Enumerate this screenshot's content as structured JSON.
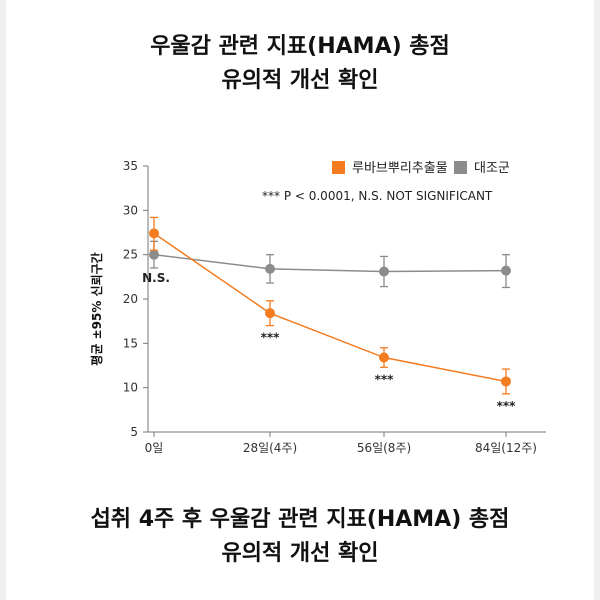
{
  "headline_top": {
    "line1": "우울감 관련 지표(HAMA) 총점",
    "line2": "유의적 개선 확인"
  },
  "headline_bottom": {
    "line1": "섭취 4주 후 우울감 관련 지표(HAMA) 총점",
    "line2": "유의적 개선 확인"
  },
  "chart_data": {
    "type": "line",
    "ylabel": "평균 ±95% 신뢰구간",
    "ylim": [
      5,
      35
    ],
    "yticks": [
      5,
      10,
      15,
      20,
      25,
      30,
      35
    ],
    "categories": [
      "0일",
      "28일(4주)",
      "56일(8주)",
      "84일(12주)"
    ],
    "grid": false,
    "legend_position": "top-right",
    "note": "*** P < 0.0001, N.S. NOT SIGNIFICANT",
    "series": [
      {
        "name": "루바브뿌리추출물",
        "color": "#f47b20",
        "values": [
          27.4,
          18.4,
          13.4,
          10.7
        ],
        "ci_low": [
          25.5,
          17.0,
          12.3,
          9.3
        ],
        "ci_high": [
          29.2,
          19.8,
          14.5,
          12.1
        ],
        "labels": [
          "",
          "***",
          "***",
          "***"
        ]
      },
      {
        "name": "대조군",
        "color": "#8c8c8c",
        "values": [
          25.0,
          23.4,
          23.1,
          23.2
        ],
        "ci_low": [
          23.5,
          21.8,
          21.4,
          21.3
        ],
        "ci_high": [
          26.5,
          25.0,
          24.8,
          25.0
        ],
        "labels": [
          "N.S.",
          "",
          "",
          ""
        ]
      }
    ]
  }
}
